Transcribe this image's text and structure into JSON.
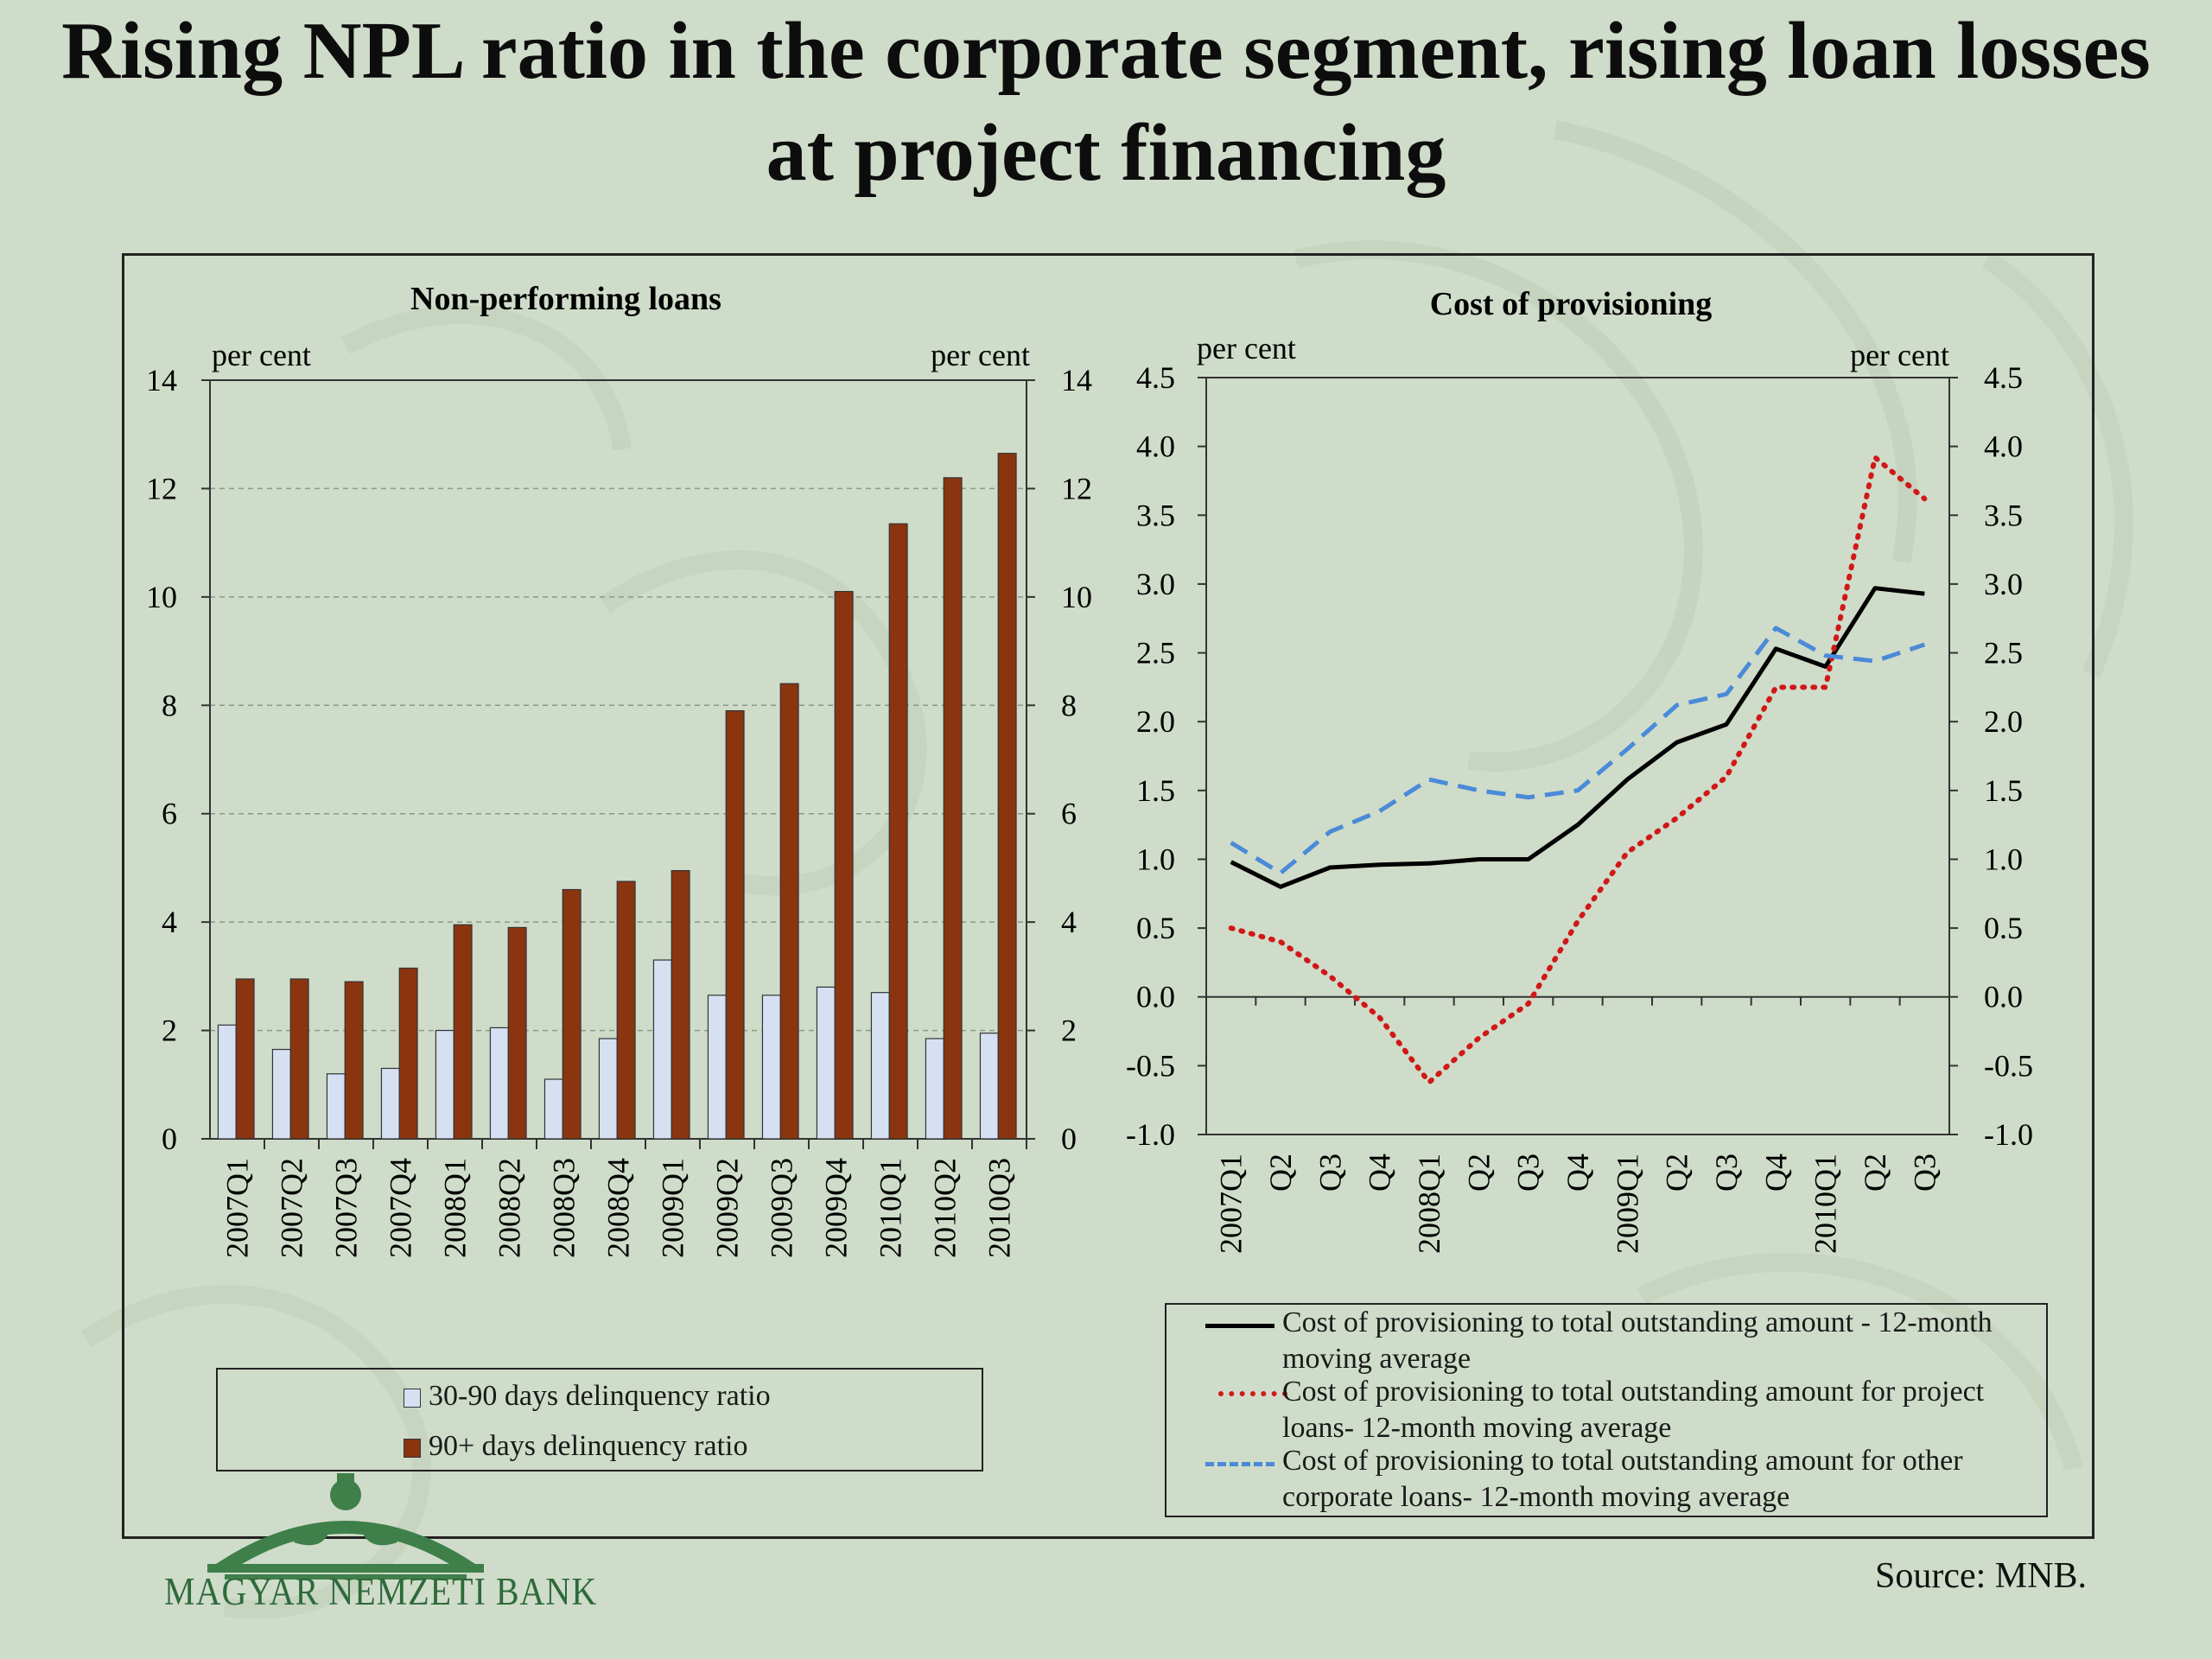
{
  "title": "Rising NPL ratio in the corporate segment, rising loan losses at project financing",
  "source": "Source: MNB.",
  "logo_text": "MAGYAR NEMZETI BANK",
  "colors": {
    "background": "#cfdcc9",
    "bar_30_90": "#d6e0f3",
    "bar_90_plus": "#8b3510",
    "line_total": "#000000",
    "line_project": "#d01818",
    "line_other": "#4a8ad8"
  },
  "chart_data": [
    {
      "type": "bar",
      "title": "Non-performing loans",
      "ylabel_left": "per cent",
      "ylabel_right": "per cent",
      "ylim": [
        0,
        14
      ],
      "yticks": [
        0,
        2,
        4,
        6,
        8,
        10,
        12,
        14
      ],
      "grid": true,
      "legend_position": "bottom",
      "categories": [
        "2007Q1",
        "2007Q2",
        "2007Q3",
        "2007Q4",
        "2008Q1",
        "2008Q2",
        "2008Q3",
        "2008Q4",
        "2009Q1",
        "2009Q2",
        "2009Q3",
        "2009Q4",
        "2010Q1",
        "2010Q2",
        "2010Q3"
      ],
      "series": [
        {
          "name": "30-90 days delinquency ratio",
          "values": [
            2.1,
            1.65,
            1.2,
            1.3,
            2.0,
            2.05,
            1.1,
            1.85,
            3.3,
            2.65,
            2.65,
            2.8,
            2.7,
            1.85,
            1.95
          ]
        },
        {
          "name": "90+ days delinquency ratio",
          "values": [
            2.95,
            2.95,
            2.9,
            3.15,
            3.95,
            3.9,
            4.6,
            4.75,
            4.95,
            7.9,
            8.4,
            10.1,
            11.35,
            12.2,
            12.65
          ]
        }
      ]
    },
    {
      "type": "line",
      "title": "Cost of provisioning",
      "ylabel_left": "per cent",
      "ylabel_right": "per cent",
      "ylim": [
        -1.0,
        4.5
      ],
      "yticks": [
        -1.0,
        -0.5,
        0.0,
        0.5,
        1.0,
        1.5,
        2.0,
        2.5,
        3.0,
        3.5,
        4.0,
        4.5
      ],
      "grid": false,
      "legend_position": "bottom",
      "categories": [
        "2007Q1",
        "Q2",
        "Q3",
        "Q4",
        "2008Q1",
        "Q2",
        "Q3",
        "Q4",
        "2009Q1",
        "Q2",
        "Q3",
        "Q4",
        "2010Q1",
        "Q2",
        "Q3"
      ],
      "series": [
        {
          "name": "Cost of provisioning to total outstanding amount - 12-month moving average",
          "style": "solid",
          "values": [
            0.98,
            0.8,
            0.94,
            0.96,
            0.97,
            1.0,
            1.0,
            1.25,
            1.58,
            1.85,
            1.98,
            2.53,
            2.4,
            2.97,
            2.93
          ]
        },
        {
          "name": "Cost of provisioning to total outstanding amount for project loans- 12-month moving average",
          "style": "dotted",
          "values": [
            0.5,
            0.4,
            0.15,
            -0.15,
            -0.62,
            -0.3,
            -0.05,
            0.55,
            1.05,
            1.3,
            1.6,
            2.25,
            2.25,
            3.92,
            3.62
          ]
        },
        {
          "name": "Cost of provisioning to total outstanding amount for other corporate loans- 12-month moving average",
          "style": "dashed",
          "values": [
            1.12,
            0.9,
            1.2,
            1.35,
            1.58,
            1.5,
            1.45,
            1.5,
            1.8,
            2.12,
            2.2,
            2.68,
            2.48,
            2.44,
            2.56
          ]
        }
      ]
    }
  ]
}
